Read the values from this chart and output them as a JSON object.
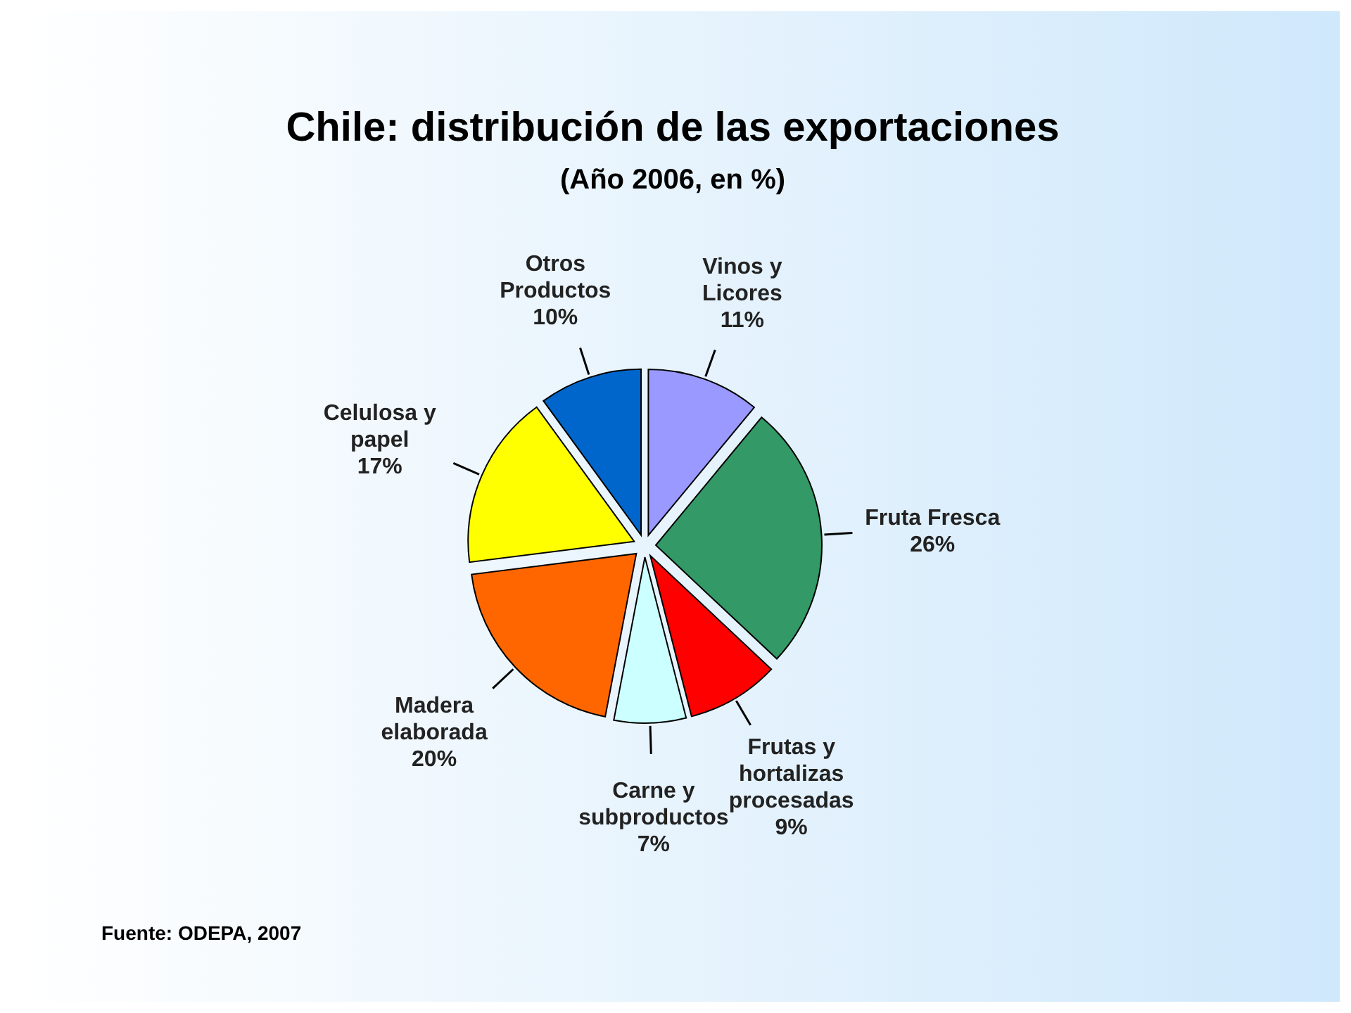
{
  "chart_data": {
    "type": "pie",
    "title": "Chile: distribución de las exportaciones",
    "subtitle": "(Año 2006, en %)",
    "categories": [
      "Vinos y Licores",
      "Fruta Fresca",
      "Frutas y hortalizas procesadas",
      "Carne y subproductos",
      "Madera elaborada",
      "Celulosa y papel",
      "Otros Productos"
    ],
    "values": [
      11,
      26,
      9,
      7,
      20,
      17,
      10
    ],
    "value_labels": [
      "11%",
      "26%",
      "9%",
      "7%",
      "20%",
      "17%",
      "10%"
    ],
    "colors": [
      "#9999ff",
      "#339966",
      "#ff0000",
      "#ccffff",
      "#ff6600",
      "#ffff00",
      "#0066cc"
    ],
    "annotations": [
      "Fuente: ODEPA, 2007"
    ]
  }
}
